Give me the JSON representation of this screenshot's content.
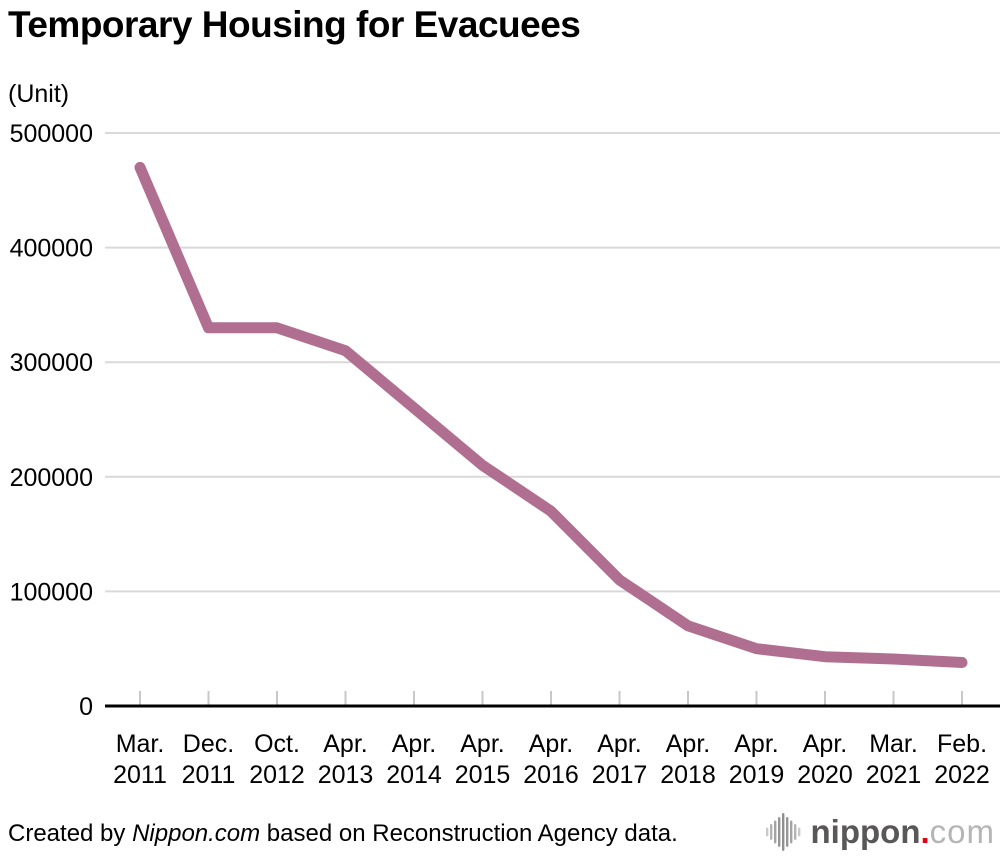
{
  "header": {
    "title": "Temporary Housing for Evacuees",
    "unit_label": "(Unit)"
  },
  "chart_data": {
    "type": "line",
    "title": "Temporary Housing for Evacuees",
    "unit": "Unit",
    "categories": [
      "Mar. 2011",
      "Dec. 2011",
      "Oct. 2012",
      "Apr. 2013",
      "Apr. 2014",
      "Apr. 2015",
      "Apr. 2016",
      "Apr. 2017",
      "Apr. 2018",
      "Apr. 2019",
      "Apr. 2020",
      "Mar. 2021",
      "Feb. 2022"
    ],
    "values": [
      470000,
      330000,
      330000,
      310000,
      260000,
      210000,
      170000,
      110000,
      70000,
      50000,
      43000,
      41000,
      38000
    ],
    "y_ticks": [
      0,
      100000,
      200000,
      300000,
      400000,
      500000
    ],
    "ylim": [
      0,
      500000
    ],
    "grid": true,
    "legend": "none",
    "line_color": "#b06f90",
    "gridline_color": "#d9d9d9",
    "axis_color": "#000000",
    "tick_color": "#c8c8c8"
  },
  "footer": {
    "credit_prefix": "Created by ",
    "credit_source": "Nippon.com",
    "credit_suffix": " based on Reconstruction Agency data.",
    "logo": {
      "icon": "waveform-icon",
      "name": "nippon",
      "dot": ".",
      "tld": "com",
      "name_color": "#595757",
      "dot_color": "#e60012",
      "tld_color": "#b5b5b6"
    }
  }
}
